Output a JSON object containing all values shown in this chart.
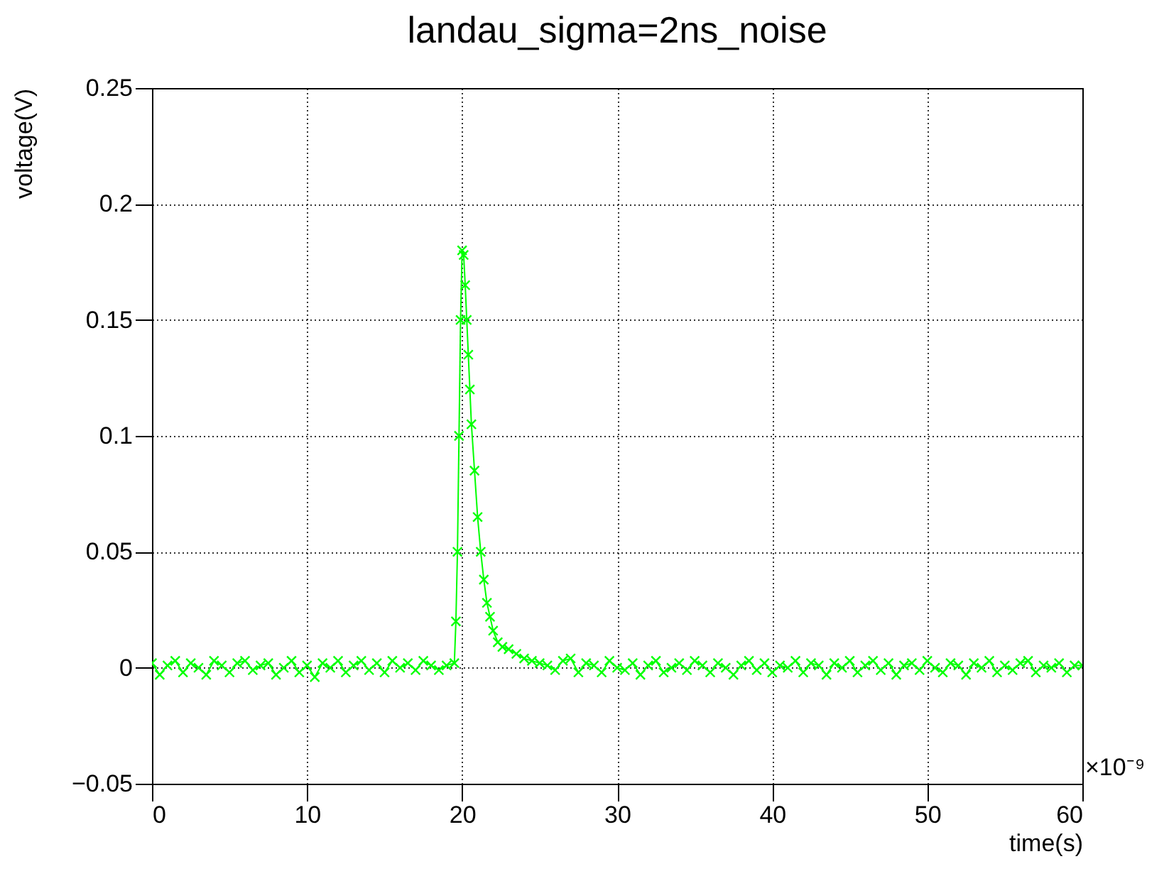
{
  "chart_data": {
    "type": "line",
    "title": "landau_sigma=2ns_noise",
    "xlabel": "time(s)",
    "ylabel": "voltage(V)",
    "annotations": [
      "×10⁻⁹"
    ],
    "xlim": [
      0,
      60
    ],
    "ylim": [
      -0.05,
      0.25
    ],
    "xticks": [
      0,
      10,
      20,
      30,
      40,
      50,
      60
    ],
    "yticks": [
      {
        "value": -0.05,
        "label": "−0.05"
      },
      0,
      0.05,
      0.1,
      0.15,
      0.2,
      0.25
    ],
    "grid": true,
    "marker": "cross",
    "line_style": "solid",
    "series": [
      {
        "color": "#00ff00",
        "x": [
          0,
          0.5,
          1,
          1.5,
          2,
          2.5,
          3,
          3.5,
          4,
          4.5,
          5,
          5.5,
          6,
          6.5,
          7,
          7.5,
          8,
          8.5,
          9,
          9.5,
          10,
          10.5,
          11,
          11.5,
          12,
          12.5,
          13,
          13.5,
          14,
          14.5,
          15,
          15.5,
          16,
          16.5,
          17,
          17.5,
          18,
          18.5,
          19,
          19.5,
          19.6,
          19.7,
          19.8,
          19.9,
          20,
          20.1,
          20.2,
          20.3,
          20.4,
          20.5,
          20.6,
          20.8,
          21,
          21.2,
          21.4,
          21.6,
          21.8,
          22,
          22.3,
          22.6,
          23,
          23.5,
          24,
          24.5,
          25,
          25.5,
          26,
          26.5,
          27,
          27.5,
          28,
          28.5,
          29,
          29.5,
          30,
          30.5,
          31,
          31.5,
          32,
          32.5,
          33,
          33.5,
          34,
          34.5,
          35,
          35.5,
          36,
          36.5,
          37,
          37.5,
          38,
          38.5,
          39,
          39.5,
          40,
          40.5,
          41,
          41.5,
          42,
          42.5,
          43,
          43.5,
          44,
          44.5,
          45,
          45.5,
          46,
          46.5,
          47,
          47.5,
          48,
          48.5,
          49,
          49.5,
          50,
          50.5,
          51,
          51.5,
          52,
          52.5,
          53,
          53.5,
          54,
          54.5,
          55,
          55.5,
          56,
          56.5,
          57,
          57.5,
          58,
          58.5,
          59,
          59.5,
          60
        ],
        "values": [
          0.002,
          -0.003,
          0.001,
          0.003,
          -0.002,
          0.002,
          0,
          -0.003,
          0.003,
          0.001,
          -0.002,
          0.002,
          0.003,
          -0.001,
          0.001,
          0.002,
          -0.003,
          0,
          0.003,
          -0.002,
          0.001,
          -0.004,
          0.002,
          0,
          0.003,
          -0.002,
          0.001,
          0.003,
          -0.001,
          0.002,
          -0.002,
          0.003,
          0,
          0.002,
          -0.001,
          0.003,
          0.001,
          -0.001,
          0.001,
          0.002,
          0.02,
          0.05,
          0.1,
          0.15,
          0.18,
          0.178,
          0.165,
          0.15,
          0.135,
          0.12,
          0.105,
          0.085,
          0.065,
          0.05,
          0.038,
          0.028,
          0.022,
          0.016,
          0.011,
          0.009,
          0.008,
          0.006,
          0.004,
          0.003,
          0.002,
          0.001,
          -0.001,
          0.003,
          0.004,
          -0.002,
          0.002,
          0.001,
          -0.002,
          0.003,
          0,
          -0.001,
          0.002,
          -0.003,
          0.001,
          0.003,
          -0.002,
          0,
          0.002,
          -0.001,
          0.003,
          0.001,
          -0.002,
          0.002,
          0,
          -0.003,
          0.001,
          0.003,
          -0.001,
          0.002,
          -0.002,
          0.001,
          0,
          0.003,
          -0.002,
          0.002,
          0.001,
          -0.003,
          0.002,
          0,
          0.003,
          -0.002,
          0.001,
          0.003,
          -0.001,
          0.002,
          -0.003,
          0.001,
          0.002,
          -0.001,
          0.003,
          0,
          -0.002,
          0.002,
          0.001,
          -0.003,
          0.002,
          0,
          0.003,
          -0.002,
          0.001,
          -0.001,
          0.002,
          0.003,
          -0.002,
          0.001,
          0,
          0.002,
          -0.002,
          0.001,
          0.001
        ]
      }
    ]
  }
}
